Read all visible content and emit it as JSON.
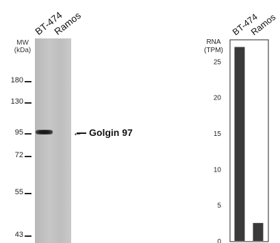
{
  "blot": {
    "lanes": [
      "BT-474",
      "Ramos"
    ],
    "mw_header": [
      "MW",
      "(kDa)"
    ],
    "markers": [
      {
        "label": "180",
        "kda": 180
      },
      {
        "label": "130",
        "kda": 130
      },
      {
        "label": "95",
        "kda": 95
      },
      {
        "label": "72",
        "kda": 72
      },
      {
        "label": "55",
        "kda": 55
      },
      {
        "label": "43",
        "kda": 43
      }
    ],
    "annotation": "Golgin 97",
    "arrow_glyph": "←"
  },
  "chart_data": {
    "type": "bar",
    "categories": [
      "BT-474",
      "Ramos"
    ],
    "values": [
      27,
      2.5
    ],
    "ylabel_lines": [
      "RNA",
      "(TPM)"
    ],
    "ylim": [
      0,
      28
    ],
    "yticks": [
      0,
      5,
      10,
      15,
      20,
      25
    ],
    "bar_color": "#3a3a3a",
    "grid": false
  }
}
